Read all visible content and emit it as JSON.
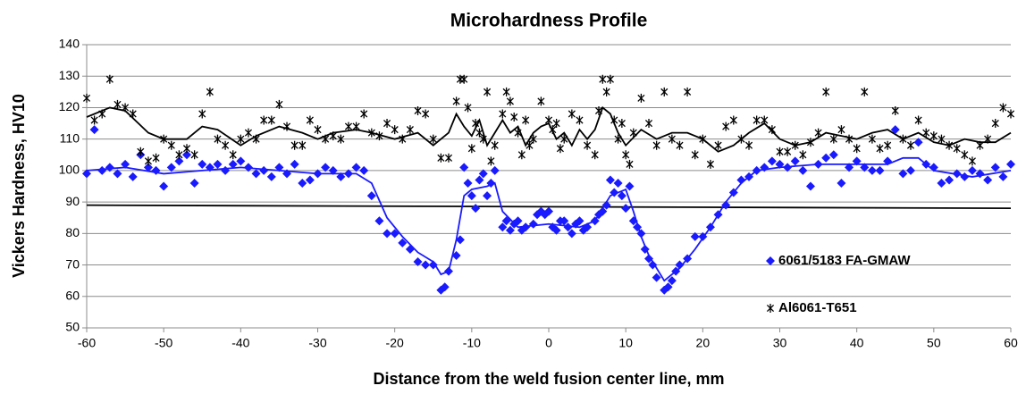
{
  "chart_data": {
    "type": "scatter",
    "title": "Microhardness Profile",
    "x_label": "Distance from the weld fusion center line, mm",
    "y_label": "Vickers Hardness, HV10",
    "xlim": [
      -60,
      60
    ],
    "xticks": [
      -60,
      -50,
      -40,
      -30,
      -20,
      -10,
      0,
      10,
      20,
      30,
      40,
      50,
      60
    ],
    "ylim": [
      50,
      140
    ],
    "yticks": [
      50,
      60,
      70,
      80,
      90,
      100,
      110,
      120,
      130,
      140
    ],
    "grid": true,
    "legend": "lower right",
    "series": [
      {
        "name": "6061/5183 FA-GMAW",
        "color": "#1a1aff",
        "marker": "diamond",
        "x": [
          -60,
          -59,
          -58,
          -57,
          -56,
          -55,
          -54,
          -53,
          -52,
          -51,
          -50,
          -49,
          -48,
          -47,
          -46,
          -45,
          -44,
          -43,
          -42,
          -41,
          -40,
          -39,
          -38,
          -37,
          -36,
          -35,
          -34,
          -33,
          -32,
          -31,
          -30,
          -29,
          -28,
          -27,
          -26,
          -25,
          -24,
          -23,
          -22,
          -21,
          -20,
          -19,
          -18,
          -17,
          -16,
          -15,
          -14,
          -13.5,
          -13,
          -12,
          -11.5,
          -11,
          -10.5,
          -10,
          -9.5,
          -9,
          -8.5,
          -8,
          -7.5,
          -7,
          -6,
          -5.5,
          -5,
          -4.5,
          -4,
          -3.5,
          -3,
          -2,
          -1.5,
          -1,
          -0.5,
          0,
          0.5,
          1,
          1.5,
          2,
          2.5,
          3,
          3.5,
          4,
          4.5,
          5,
          6,
          6.5,
          7,
          7.5,
          8,
          8.5,
          9,
          9.5,
          10,
          10.5,
          11,
          11.5,
          12,
          12.5,
          13,
          13.5,
          14,
          15,
          15.5,
          16,
          16.5,
          17,
          18,
          19,
          20,
          21,
          22,
          23,
          24,
          25,
          26,
          27,
          28,
          29,
          30,
          31,
          32,
          33,
          34,
          35,
          36,
          37,
          38,
          39,
          40,
          41,
          42,
          43,
          44,
          45,
          46,
          47,
          48,
          49,
          50,
          51,
          52,
          53,
          54,
          55,
          56,
          57,
          58,
          59,
          60
        ],
        "values": [
          99,
          113,
          100,
          101,
          99,
          102,
          98,
          105,
          101,
          100,
          95,
          101,
          103,
          105,
          96,
          102,
          101,
          102,
          100,
          102,
          103,
          101,
          99,
          100,
          98,
          101,
          99,
          102,
          96,
          97,
          99,
          101,
          100,
          98,
          99,
          101,
          100,
          92,
          84,
          80,
          80,
          77,
          75,
          71,
          70,
          70,
          62,
          63,
          68,
          73,
          78,
          101,
          96,
          92,
          88,
          97,
          99,
          92,
          96,
          100,
          82,
          84,
          81,
          83,
          84,
          81,
          82,
          83,
          86,
          87,
          86,
          87,
          82,
          81,
          84,
          84,
          82,
          80,
          83,
          84,
          81,
          82,
          84,
          86,
          87,
          89,
          97,
          93,
          96,
          92,
          88,
          95,
          84,
          82,
          80,
          75,
          72,
          70,
          66,
          62,
          63,
          65,
          68,
          70,
          72,
          79,
          79,
          82,
          86,
          89,
          93,
          97,
          98,
          100,
          101,
          103,
          102,
          101,
          103,
          100,
          95,
          102,
          104,
          105,
          96,
          101,
          103,
          101,
          100,
          100,
          103,
          113,
          99,
          100,
          109,
          102,
          101,
          96,
          97,
          99,
          98,
          100,
          99,
          97,
          101,
          98,
          102
        ]
      },
      {
        "name": "Al6061-T651",
        "color": "#000000",
        "marker": "asterisk",
        "x": [
          -60,
          -59,
          -58,
          -57,
          -56,
          -55,
          -54,
          -53,
          -52,
          -51,
          -50,
          -49,
          -48,
          -47,
          -46,
          -45,
          -44,
          -43,
          -42,
          -41,
          -40,
          -39,
          -38,
          -37,
          -36,
          -35,
          -34,
          -33,
          -32,
          -31,
          -30,
          -29,
          -28,
          -27,
          -26,
          -25,
          -24,
          -23,
          -22,
          -21,
          -20,
          -19,
          -18,
          -17,
          -16,
          -15,
          -14,
          -13,
          -12,
          -11.5,
          -11,
          -10.5,
          -10,
          -9.5,
          -9,
          -8.5,
          -8,
          -7.5,
          -7,
          -6,
          -5.5,
          -5,
          -4.5,
          -4,
          -3.5,
          -3,
          -2.5,
          -2,
          -1,
          0,
          0.5,
          1,
          1.5,
          2,
          3,
          4,
          5,
          6,
          6.5,
          7,
          7.5,
          8,
          8.5,
          9,
          9.5,
          10,
          10.5,
          11,
          12,
          13,
          14,
          15,
          16,
          17,
          18,
          19,
          20,
          21,
          22,
          23,
          24,
          25,
          26,
          27,
          28,
          29,
          30,
          31,
          32,
          33,
          34,
          35,
          36,
          37,
          38,
          39,
          40,
          41,
          42,
          43,
          44,
          45,
          46,
          47,
          48,
          49,
          50,
          51,
          52,
          53,
          54,
          55,
          56,
          57,
          58,
          59,
          60
        ],
        "values": [
          123,
          116,
          118,
          129,
          121,
          120,
          118,
          106,
          103,
          104,
          110,
          108,
          105,
          107,
          105,
          118,
          125,
          110,
          108,
          105,
          110,
          112,
          110,
          116,
          116,
          121,
          114,
          108,
          108,
          116,
          113,
          110,
          111,
          110,
          114,
          114,
          118,
          112,
          111,
          115,
          113,
          110,
          113,
          119,
          118,
          110,
          104,
          104,
          122,
          129,
          129,
          120,
          107,
          115,
          112,
          110,
          125,
          103,
          108,
          118,
          125,
          122,
          117,
          112,
          105,
          116,
          108,
          110,
          122,
          116,
          113,
          115,
          107,
          110,
          118,
          116,
          108,
          105,
          119,
          129,
          125,
          129,
          116,
          110,
          115,
          105,
          102,
          112,
          123,
          115,
          108,
          125,
          110,
          108,
          125,
          105,
          110,
          102,
          108,
          114,
          116,
          110,
          108,
          116,
          116,
          113,
          106,
          106,
          108,
          105,
          109,
          112,
          125,
          110,
          113,
          110,
          107,
          125,
          110,
          107,
          108,
          119,
          110,
          108,
          116,
          112,
          111,
          110,
          108,
          107,
          105,
          103,
          108,
          110,
          115,
          120,
          118
        ]
      }
    ],
    "trendlines": [
      {
        "color": "#1a1aff",
        "x": [
          -60,
          -55,
          -50,
          -45,
          -40,
          -35,
          -30,
          -25,
          -23,
          -21,
          -19,
          -17,
          -15,
          -14,
          -13,
          -12,
          -11,
          -10,
          -8,
          -7,
          -6,
          -4,
          0,
          4,
          6,
          7,
          8,
          10,
          11,
          12,
          13,
          15,
          17,
          19,
          21,
          23,
          25,
          27,
          30,
          35,
          40,
          44,
          46,
          48,
          50,
          55,
          60
        ],
        "values": [
          100,
          101,
          99,
          100,
          101,
          100,
          99,
          99,
          96,
          85,
          79,
          74,
          71,
          67,
          68,
          78,
          92,
          94,
          95,
          96,
          87,
          82,
          83,
          82,
          84,
          88,
          92,
          94,
          87,
          79,
          73,
          65,
          69,
          75,
          82,
          90,
          96,
          100,
          101,
          102,
          102,
          102,
          104,
          104,
          100,
          98,
          100
        ]
      },
      {
        "color": "#000000",
        "x": [
          -60,
          -57,
          -55,
          -52,
          -50,
          -47,
          -45,
          -43,
          -40,
          -38,
          -35,
          -32,
          -30,
          -28,
          -25,
          -23,
          -20,
          -17,
          -15,
          -13,
          -12,
          -11,
          -10,
          -9,
          -8,
          -7,
          -6,
          -5,
          -4,
          -3,
          -2,
          -1,
          0,
          1,
          2,
          3,
          4,
          5,
          6,
          7,
          8,
          9,
          10,
          12,
          14,
          16,
          18,
          20,
          22,
          24,
          26,
          28,
          30,
          32,
          34,
          36,
          38,
          40,
          42,
          44,
          46,
          48,
          50,
          52,
          54,
          56,
          58,
          60
        ],
        "values": [
          117,
          120,
          119,
          112,
          110,
          110,
          114,
          113,
          108,
          111,
          114,
          112,
          110,
          112,
          113,
          112,
          110,
          112,
          108,
          112,
          118,
          114,
          111,
          116,
          108,
          112,
          116,
          112,
          114,
          108,
          112,
          114,
          115,
          110,
          112,
          108,
          113,
          110,
          113,
          120,
          118,
          112,
          108,
          113,
          110,
          112,
          112,
          110,
          106,
          108,
          112,
          115,
          110,
          108,
          109,
          112,
          111,
          110,
          112,
          113,
          110,
          112,
          109,
          108,
          110,
          109,
          109,
          112
        ]
      }
    ],
    "reference_line": {
      "color": "#000000",
      "x": [
        -60,
        60
      ],
      "values": [
        89,
        88
      ]
    }
  }
}
